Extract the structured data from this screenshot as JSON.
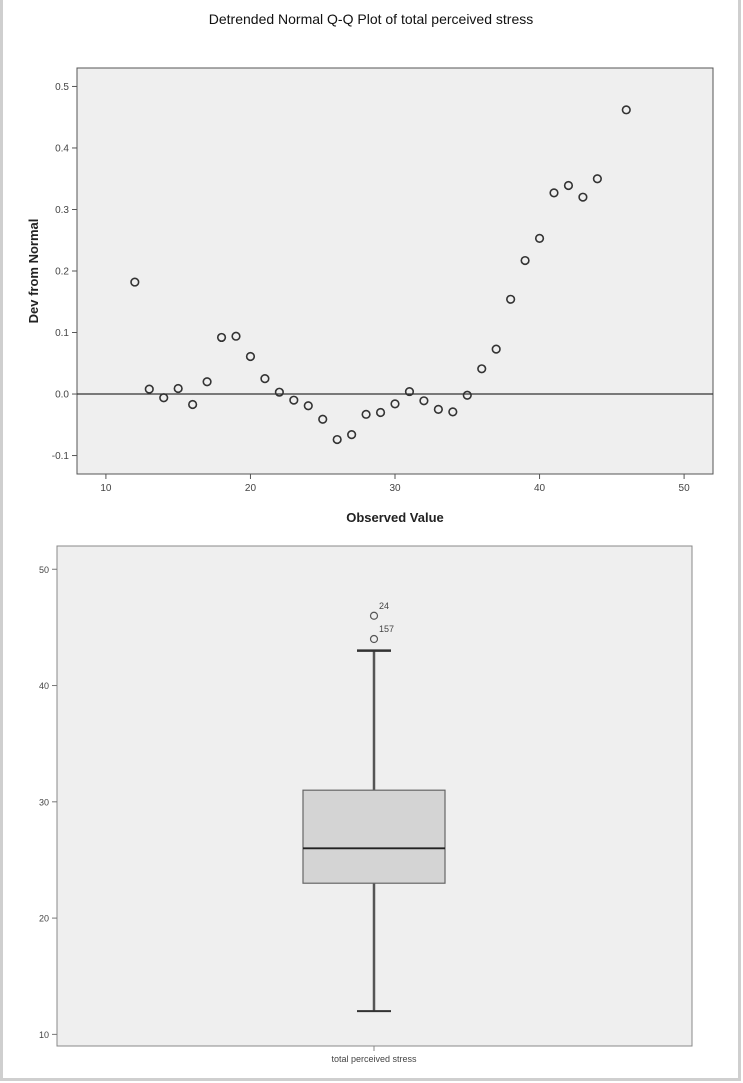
{
  "chart_data": [
    {
      "type": "scatter",
      "title": "Detrended Normal Q-Q Plot of total perceived stress",
      "xlabel": "Observed Value",
      "ylabel": "Dev from Normal",
      "xlim": [
        8,
        52
      ],
      "ylim": [
        -0.13,
        0.53
      ],
      "xticks": [
        10,
        20,
        30,
        40,
        50
      ],
      "yticks": [
        -0.1,
        0.0,
        0.1,
        0.2,
        0.3,
        0.4,
        0.5
      ],
      "ytick_labels": [
        "-0.1",
        "0.0",
        "0.1",
        "0.2",
        "0.3",
        "0.4",
        "0.5"
      ],
      "reference_line": 0,
      "points": [
        {
          "x": 12,
          "y": 0.182
        },
        {
          "x": 13,
          "y": 0.008
        },
        {
          "x": 14,
          "y": -0.006
        },
        {
          "x": 15,
          "y": 0.009
        },
        {
          "x": 16,
          "y": -0.017
        },
        {
          "x": 17,
          "y": 0.02
        },
        {
          "x": 18,
          "y": 0.092
        },
        {
          "x": 19,
          "y": 0.094
        },
        {
          "x": 20,
          "y": 0.061
        },
        {
          "x": 21,
          "y": 0.025
        },
        {
          "x": 22,
          "y": 0.003
        },
        {
          "x": 23,
          "y": -0.01
        },
        {
          "x": 24,
          "y": -0.019
        },
        {
          "x": 25,
          "y": -0.041
        },
        {
          "x": 26,
          "y": -0.074
        },
        {
          "x": 27,
          "y": -0.066
        },
        {
          "x": 28,
          "y": -0.033
        },
        {
          "x": 29,
          "y": -0.03
        },
        {
          "x": 30,
          "y": -0.016
        },
        {
          "x": 31,
          "y": 0.004
        },
        {
          "x": 32,
          "y": -0.011
        },
        {
          "x": 33,
          "y": -0.025
        },
        {
          "x": 34,
          "y": -0.029
        },
        {
          "x": 35,
          "y": -0.002
        },
        {
          "x": 36,
          "y": 0.041
        },
        {
          "x": 37,
          "y": 0.073
        },
        {
          "x": 38,
          "y": 0.154
        },
        {
          "x": 39,
          "y": 0.217
        },
        {
          "x": 40,
          "y": 0.253
        },
        {
          "x": 41,
          "y": 0.327
        },
        {
          "x": 42,
          "y": 0.339
        },
        {
          "x": 43,
          "y": 0.32
        },
        {
          "x": 44,
          "y": 0.35
        },
        {
          "x": 46,
          "y": 0.462
        }
      ]
    },
    {
      "type": "box",
      "xlabel": "total perceived stress",
      "ylim": [
        9,
        52
      ],
      "yticks": [
        10,
        20,
        30,
        40,
        50
      ],
      "box": {
        "min": 12,
        "q1": 23,
        "median": 26,
        "q3": 31,
        "max": 43
      },
      "outliers": [
        {
          "value": 46,
          "label": "24"
        },
        {
          "value": 44,
          "label": "157"
        }
      ]
    }
  ]
}
